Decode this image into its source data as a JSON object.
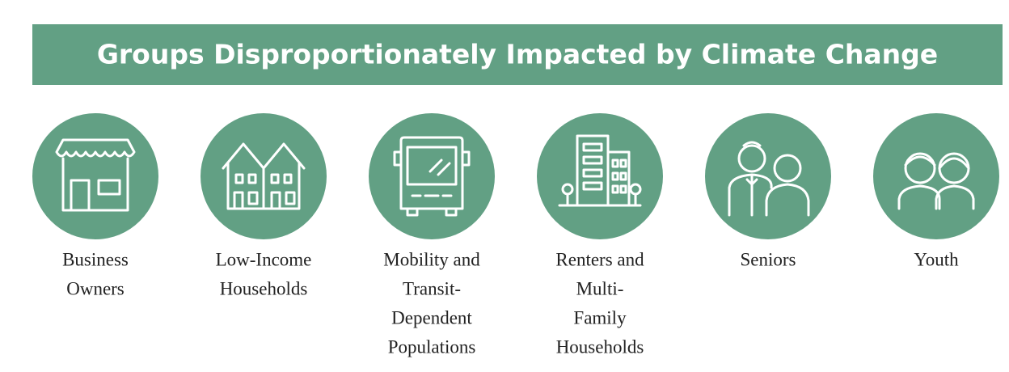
{
  "title": "Groups Disproportionately Impacted by Climate Change",
  "groups": [
    {
      "lines": [
        "Business",
        "Owners"
      ]
    },
    {
      "lines": [
        "Low-Income",
        "Households"
      ]
    },
    {
      "lines": [
        "Mobility and",
        "Transit-",
        "Dependent",
        "Populations"
      ]
    },
    {
      "lines": [
        "Renters and",
        "Multi-",
        "Family",
        "Households"
      ]
    },
    {
      "lines": [
        "Seniors"
      ]
    },
    {
      "lines": [
        "Youth"
      ]
    }
  ]
}
